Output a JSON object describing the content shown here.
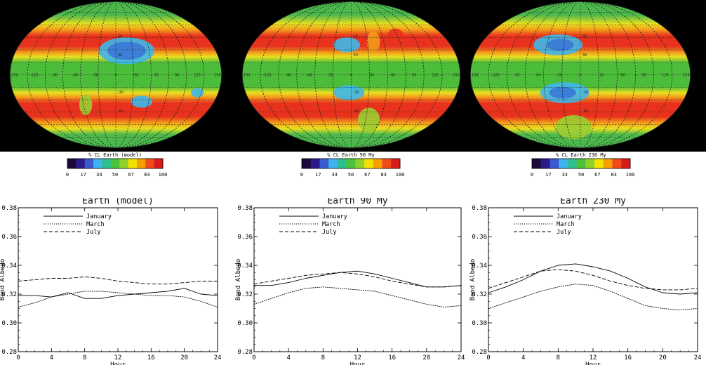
{
  "maps": [
    {
      "id": "model",
      "colorbar_title": "% CL Earth (model)"
    },
    {
      "id": "90my",
      "colorbar_title": "% CL Earth 90 My"
    },
    {
      "id": "230my",
      "colorbar_title": "% CL Earth 230 My"
    }
  ],
  "colorbar": {
    "ticks": [
      "0",
      "17",
      "33",
      "50",
      "67",
      "83",
      "100"
    ],
    "colors": [
      "#1a0a3a",
      "#2a1a8a",
      "#3a5ad0",
      "#3fb3f0",
      "#2fbf8f",
      "#4cc23a",
      "#8ed12a",
      "#f4e100",
      "#f5a000",
      "#ef4a1a",
      "#d81a1a"
    ]
  },
  "map_colors": {
    "ocean": "#000000",
    "pole": "#4cb84c",
    "band_red": "#e8321e",
    "band_orange": "#f39a1b",
    "band_yellow": "#e9e020",
    "green": "#4cbd3a",
    "light_green": "#9acd32",
    "blue": "#3a78d8",
    "cyan": "#3fb7ea",
    "grid": "#1a1a1a"
  },
  "map_labels": [
    "60",
    "30",
    "-30",
    "-60",
    "-150",
    "-120",
    "-90",
    "-60",
    "-30",
    "0",
    "30",
    "60",
    "90",
    "120",
    "150"
  ],
  "chart_data": [
    {
      "type": "line",
      "title": "Earth (model)",
      "xlabel": "Hour",
      "ylabel": "Bond Albedo",
      "xlim": [
        0,
        24
      ],
      "ylim": [
        0.28,
        0.38
      ],
      "xticks": [
        0,
        4,
        8,
        12,
        16,
        20,
        24
      ],
      "yticks": [
        0.28,
        0.3,
        0.32,
        0.34,
        0.36,
        0.38
      ],
      "ytick_labels": [
        "0.28",
        "0.30",
        "0.32",
        "0.34",
        "0.36",
        "0.38"
      ],
      "x": [
        0,
        2,
        4,
        6,
        8,
        10,
        12,
        14,
        16,
        18,
        20,
        22,
        24
      ],
      "series": [
        {
          "name": "January",
          "style": "solid",
          "values": [
            0.319,
            0.319,
            0.318,
            0.321,
            0.317,
            0.317,
            0.319,
            0.32,
            0.321,
            0.322,
            0.324,
            0.32,
            0.319
          ]
        },
        {
          "name": "March",
          "style": "dotted",
          "values": [
            0.311,
            0.314,
            0.318,
            0.32,
            0.322,
            0.322,
            0.321,
            0.32,
            0.319,
            0.319,
            0.318,
            0.315,
            0.311
          ]
        },
        {
          "name": "July",
          "style": "dashed",
          "values": [
            0.329,
            0.33,
            0.331,
            0.331,
            0.332,
            0.331,
            0.329,
            0.328,
            0.327,
            0.327,
            0.328,
            0.329,
            0.329
          ]
        }
      ],
      "legend": "top-left",
      "grid": false
    },
    {
      "type": "line",
      "title": "Earth 90 My",
      "xlabel": "Hour",
      "ylabel": "Bond Albedo",
      "xlim": [
        0,
        24
      ],
      "ylim": [
        0.28,
        0.38
      ],
      "xticks": [
        0,
        4,
        8,
        12,
        16,
        20,
        24
      ],
      "yticks": [
        0.28,
        0.3,
        0.32,
        0.34,
        0.36,
        0.38
      ],
      "ytick_labels": [
        "0.28",
        "0.30",
        "0.32",
        "0.34",
        "0.36",
        "0.38"
      ],
      "x": [
        0,
        2,
        4,
        6,
        8,
        10,
        12,
        14,
        16,
        18,
        20,
        22,
        24
      ],
      "series": [
        {
          "name": "January",
          "style": "solid",
          "values": [
            0.326,
            0.326,
            0.328,
            0.331,
            0.333,
            0.335,
            0.336,
            0.334,
            0.331,
            0.328,
            0.325,
            0.325,
            0.326
          ]
        },
        {
          "name": "March",
          "style": "dotted",
          "values": [
            0.313,
            0.317,
            0.321,
            0.324,
            0.325,
            0.324,
            0.323,
            0.322,
            0.319,
            0.316,
            0.313,
            0.311,
            0.312
          ]
        },
        {
          "name": "July",
          "style": "dashed",
          "values": [
            0.327,
            0.329,
            0.331,
            0.333,
            0.334,
            0.335,
            0.334,
            0.332,
            0.329,
            0.327,
            0.325,
            0.325,
            0.326
          ]
        }
      ],
      "legend": "top-left",
      "grid": false
    },
    {
      "type": "line",
      "title": "Earth 230 My",
      "xlabel": "Hour",
      "ylabel": "Bond Albedo",
      "xlim": [
        0,
        24
      ],
      "ylim": [
        0.28,
        0.38
      ],
      "xticks": [
        0,
        4,
        8,
        12,
        16,
        20,
        24
      ],
      "yticks": [
        0.28,
        0.3,
        0.32,
        0.34,
        0.36,
        0.38
      ],
      "ytick_labels": [
        "0.28",
        "0.30",
        "0.32",
        "0.34",
        "0.36",
        "0.38"
      ],
      "x": [
        0,
        2,
        4,
        6,
        8,
        10,
        12,
        14,
        16,
        18,
        20,
        22,
        24
      ],
      "series": [
        {
          "name": "January",
          "style": "solid",
          "values": [
            0.321,
            0.325,
            0.33,
            0.336,
            0.34,
            0.341,
            0.339,
            0.336,
            0.331,
            0.325,
            0.321,
            0.32,
            0.321
          ]
        },
        {
          "name": "March",
          "style": "dotted",
          "values": [
            0.31,
            0.314,
            0.318,
            0.322,
            0.325,
            0.327,
            0.326,
            0.322,
            0.317,
            0.312,
            0.31,
            0.309,
            0.31
          ]
        },
        {
          "name": "July",
          "style": "dashed",
          "values": [
            0.324,
            0.328,
            0.332,
            0.336,
            0.337,
            0.336,
            0.333,
            0.329,
            0.326,
            0.324,
            0.323,
            0.323,
            0.324
          ]
        }
      ],
      "legend": "top-left",
      "grid": false
    }
  ]
}
